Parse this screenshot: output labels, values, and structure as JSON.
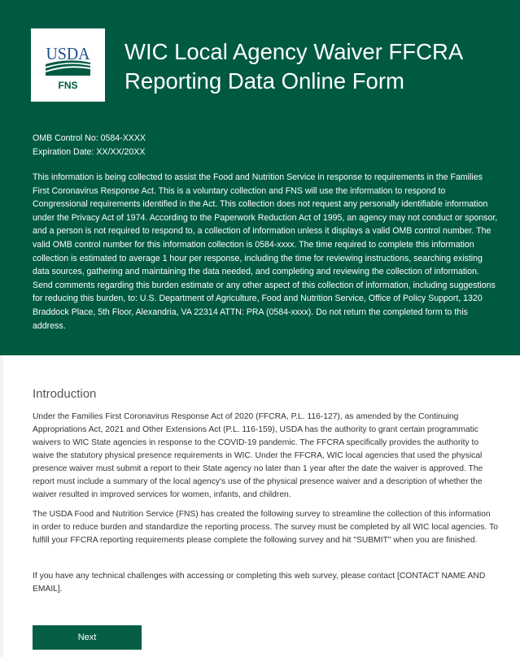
{
  "header": {
    "logo_text": "USDA",
    "logo_subtext": "FNS",
    "title_line1": "WIC Local Agency Waiver FFCRA",
    "title_line2": "Reporting Data Online Form",
    "omb_control": "OMB Control No: 0584-XXXX",
    "expiration": "Expiration Date: XX/XX/20XX",
    "notice": "This information is being collected to assist the Food and Nutrition Service in response to requirements in the Families First Coronavirus Response Act. This is a voluntary collection and FNS will use the information to respond to Congressional requirements identified in the Act. This collection does not request any personally identifiable information under the Privacy Act of 1974. According to the Paperwork Reduction Act of 1995, an agency may not conduct or sponsor, and a person is not required to respond to, a collection of information unless it displays a valid OMB control number. The valid OMB control number for this information collection is 0584-xxxx. The time required to complete this information collection is estimated to average 1 hour per response, including the time for reviewing instructions, searching existing data sources, gathering and maintaining the data needed, and completing and reviewing the collection of information. Send comments regarding this burden estimate or any other aspect of this collection of information, including suggestions for reducing this burden, to:  U.S. Department of Agriculture, Food and Nutrition Service, Office of Policy Support, 1320 Braddock Place, 5th Floor, Alexandria, VA 22314 ATTN:  PRA (0584-xxxx). Do not return the completed form to this address."
  },
  "intro": {
    "heading": "Introduction",
    "paragraphs": [
      "Under the Families First Coronavirus Response Act of 2020 (FFCRA, P.L. 116-127), as amended by the Continuing Appropriations Act, 2021 and Other Extensions Act (P.L. 116-159), USDA has the authority to grant certain programmatic waivers to WIC State agencies in response to the COVID-19 pandemic. The FFCRA specifically provides the authority to waive the statutory physical presence requirements in WIC. Under the FFCRA, WIC local agencies that used the physical presence waiver must submit a report to their State agency no later than 1 year after the date the waiver is approved. The report must include a summary of the local agency's use of the physical presence waiver and a description of whether the waiver resulted in improved services for women, infants, and children.",
      "The USDA Food and Nutrition Service (FNS) has created the following survey to streamline the collection of this information in order to reduce burden and standardize the reporting process. The survey must be completed by all WIC local agencies. To fulfill your FFCRA reporting requirements please complete the following survey and hit \"SUBMIT\" when you are finished.",
      "If you have any technical challenges with accessing or completing this web survey, please contact [CONTACT NAME AND EMAIL]."
    ],
    "next_label": "Next"
  },
  "colors": {
    "brand_green": "#005a41",
    "button_green": "#065f45",
    "logo_blue": "#1d4f91"
  }
}
